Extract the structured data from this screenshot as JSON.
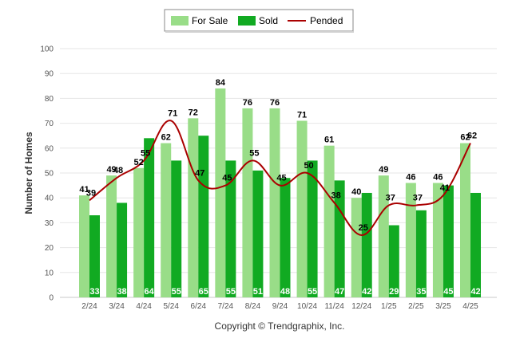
{
  "chart_data": {
    "type": "bar",
    "categories": [
      "2/24",
      "3/24",
      "4/24",
      "5/24",
      "6/24",
      "7/24",
      "8/24",
      "9/24",
      "10/24",
      "11/24",
      "12/24",
      "1/25",
      "2/25",
      "3/25",
      "4/25"
    ],
    "series": [
      {
        "name": "For Sale",
        "type": "bar",
        "color": "#99dd88",
        "values": [
          41,
          49,
          52,
          62,
          72,
          84,
          76,
          76,
          71,
          61,
          40,
          49,
          46,
          46,
          62
        ]
      },
      {
        "name": "Sold",
        "type": "bar",
        "color": "#11aa22",
        "values": [
          33,
          38,
          64,
          55,
          65,
          55,
          51,
          48,
          55,
          47,
          42,
          29,
          35,
          45,
          42
        ]
      },
      {
        "name": "Pended",
        "type": "line",
        "color": "#aa0000",
        "values": [
          39,
          48,
          55,
          71,
          47,
          45,
          55,
          45,
          50,
          38,
          25,
          37,
          37,
          41,
          62
        ]
      }
    ],
    "ylabel": "Number of Homes",
    "ylim": [
      0,
      100
    ],
    "yticks": [
      0,
      10,
      20,
      30,
      40,
      50,
      60,
      70,
      80,
      90,
      100
    ],
    "grid": true,
    "legend_position": "top-center"
  },
  "footer": "Copyright © Trendgraphix, Inc."
}
